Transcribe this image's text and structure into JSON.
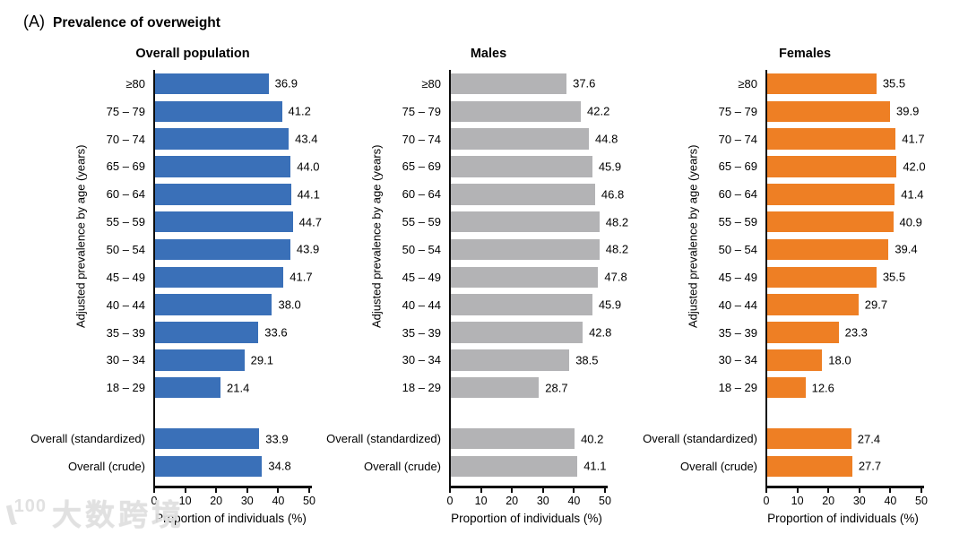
{
  "heading": {
    "prefix": "(A)",
    "title": "Prevalence of overweight"
  },
  "watermark": {
    "logo_text": "100",
    "text": "大数跨境"
  },
  "chart_data": {
    "type": "bar",
    "orientation": "horizontal",
    "title": "Prevalence of overweight",
    "xlabel": "Proportion of individuals (%)",
    "ylabel": "Adjusted prevalence by age (years)",
    "xlim": [
      0,
      50
    ],
    "xticks": [
      0,
      10,
      20,
      30,
      40,
      50
    ],
    "grid": false,
    "legend": "none",
    "age_groups": [
      "≥80",
      "75 – 79",
      "70 – 74",
      "65 – 69",
      "60 – 64",
      "55 – 59",
      "50 – 54",
      "45 – 49",
      "40 – 44",
      "35 – 39",
      "30 – 34",
      "18 – 29"
    ],
    "overall_groups": [
      "Overall (standardized)",
      "Overall (crude)"
    ],
    "panels": [
      {
        "title": "Overall population",
        "color": "#3A70B8",
        "age_values": [
          36.9,
          41.2,
          43.4,
          44.0,
          44.1,
          44.7,
          43.9,
          41.7,
          38.0,
          33.6,
          29.1,
          21.4
        ],
        "overall_values": [
          33.9,
          34.8
        ]
      },
      {
        "title": "Males",
        "color": "#B3B3B5",
        "age_values": [
          37.6,
          42.2,
          44.8,
          45.9,
          46.8,
          48.2,
          48.2,
          47.8,
          45.9,
          42.8,
          38.5,
          28.7
        ],
        "overall_values": [
          40.2,
          41.1
        ]
      },
      {
        "title": "Females",
        "color": "#EE7F24",
        "age_values": [
          35.5,
          39.9,
          41.7,
          42.0,
          41.4,
          40.9,
          39.4,
          35.5,
          29.7,
          23.3,
          18.0,
          12.6
        ],
        "overall_values": [
          27.4,
          27.7
        ]
      }
    ]
  }
}
